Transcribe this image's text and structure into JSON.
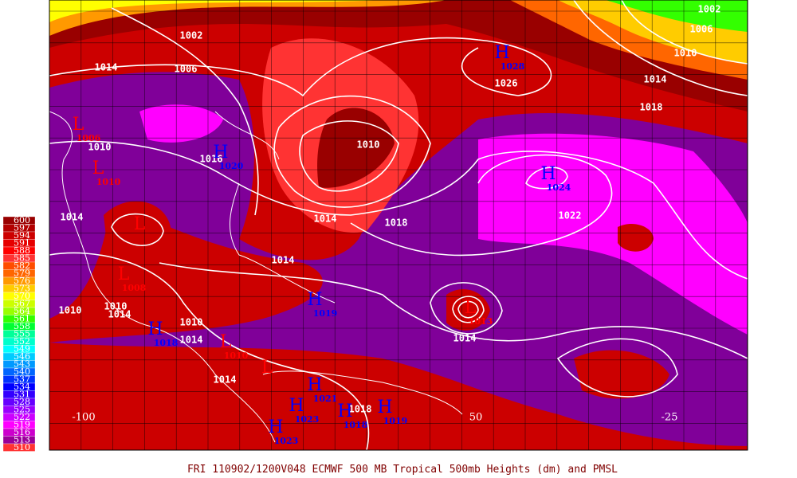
{
  "legend": [
    {
      "label": "600",
      "color": "#990000"
    },
    {
      "label": "597",
      "color": "#b30000"
    },
    {
      "label": "594",
      "color": "#cc0000"
    },
    {
      "label": "591",
      "color": "#e60000"
    },
    {
      "label": "588",
      "color": "#ff0000"
    },
    {
      "label": "585",
      "color": "#ff3333"
    },
    {
      "label": "582",
      "color": "#ff4d00"
    },
    {
      "label": "579",
      "color": "#ff6600"
    },
    {
      "label": "576",
      "color": "#ff9900"
    },
    {
      "label": "573",
      "color": "#ffcc00"
    },
    {
      "label": "570",
      "color": "#ffff00"
    },
    {
      "label": "567",
      "color": "#ccff00"
    },
    {
      "label": "564",
      "color": "#99ff00"
    },
    {
      "label": "561",
      "color": "#33ff00"
    },
    {
      "label": "558",
      "color": "#00ff33"
    },
    {
      "label": "555",
      "color": "#00ff99"
    },
    {
      "label": "552",
      "color": "#00ffcc"
    },
    {
      "label": "549",
      "color": "#00ffff"
    },
    {
      "label": "546",
      "color": "#00ccff"
    },
    {
      "label": "543",
      "color": "#0099ff"
    },
    {
      "label": "540",
      "color": "#0066ff"
    },
    {
      "label": "537",
      "color": "#0033ff"
    },
    {
      "label": "534",
      "color": "#0000ff"
    },
    {
      "label": "531",
      "color": "#3300ff"
    },
    {
      "label": "528",
      "color": "#6600ff"
    },
    {
      "label": "525",
      "color": "#9900ff"
    },
    {
      "label": "522",
      "color": "#cc00ff"
    },
    {
      "label": "519",
      "color": "#ff00ff"
    },
    {
      "label": "516",
      "color": "#cc00cc"
    },
    {
      "label": "513",
      "color": "#990099"
    },
    {
      "label": "510",
      "color": "#ff3333"
    }
  ],
  "isobar_labels": [
    "1002",
    "1014",
    "1006",
    "1010",
    "1016",
    "1014",
    "1018",
    "1014",
    "1010",
    "1026",
    "1022",
    "1018",
    "1014",
    "1010",
    "1006",
    "1002",
    "1014",
    "1010",
    "1014",
    "1010",
    "1010",
    "1014",
    "1014",
    "1014",
    "1018"
  ],
  "centers": [
    {
      "letter": "L",
      "value": "1006"
    },
    {
      "letter": "L",
      "value": "1010"
    },
    {
      "letter": "H",
      "value": "1020"
    },
    {
      "letter": "L"
    },
    {
      "letter": "L",
      "value": "1008"
    },
    {
      "letter": "H",
      "value": "1019"
    },
    {
      "letter": "H",
      "value": "1018"
    },
    {
      "letter": "L",
      "value": "1010"
    },
    {
      "letter": "L"
    },
    {
      "letter": "H",
      "value": "1021"
    },
    {
      "letter": "H",
      "value": "1023"
    },
    {
      "letter": "H",
      "value": "1023"
    },
    {
      "letter": "H",
      "value": "1018"
    },
    {
      "letter": "H",
      "value": "1019"
    },
    {
      "letter": "H",
      "value": "1028"
    },
    {
      "letter": "H",
      "value": "1024"
    },
    {
      "letter": "L",
      "value": "1013"
    }
  ],
  "longitudes": [
    "-100",
    "50",
    "-25"
  ],
  "footer": "FRI 110902/1200V048  ECMWF  500 MB Tropical 500mb Heights (dm) and PMSL"
}
